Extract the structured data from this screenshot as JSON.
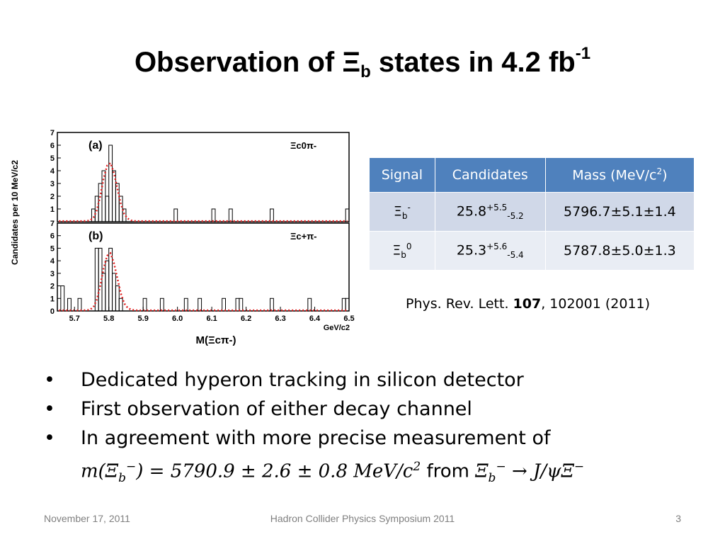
{
  "slide": {
    "title_main": "Observation of Ξ",
    "title_sub": "b",
    "title_rest": " states in 4.2 fb",
    "title_sup": "-1"
  },
  "table": {
    "headers": {
      "signal": "Signal",
      "candidates": "Candidates",
      "mass": "Mass (MeV/c",
      "mass_sup": "2",
      "mass_close": ")"
    },
    "rows": [
      {
        "signal": "Ξ",
        "signal_sub": "b",
        "signal_sup": "-",
        "cand": "25.8",
        "cand_sup": "+5.5",
        "cand_sub": "-5.2",
        "mass": "5796.7±5.1±1.4"
      },
      {
        "signal": "Ξ",
        "signal_sub": "b",
        "signal_sup": "0",
        "cand": "25.3",
        "cand_sup": "+5.6",
        "cand_sub": "-5.4",
        "mass": "5787.8±5.0±1.3"
      }
    ]
  },
  "reference": {
    "journal": "Phys. Rev. Lett. ",
    "volume": "107",
    "rest": ", 102001 (2011)"
  },
  "bullets": {
    "items": [
      "Dedicated hyperon tracking in silicon detector",
      "First observation of either decay channel",
      "In agreement with more precise measurement of"
    ],
    "marker": "•",
    "math_m": "m(Ξ",
    "math_b": "b",
    "math_minus": "−",
    "math_value": ") = 5790.9 ± 2.6 ± 0.8 MeV/c",
    "math_sq": "2",
    "math_from": " from ",
    "math_xi": "Ξ",
    "math_decay": " → J/ψΞ",
    "math_minus2": "−"
  },
  "footer": {
    "date": "November 17, 2011",
    "center": "Hadron Collider Physics Symposium  2011",
    "page": "3"
  },
  "chart_data": [
    {
      "type": "bar",
      "panel_label": "(a)",
      "channel_label": "Ξc0π-",
      "xlim": [
        5.65,
        6.5
      ],
      "ylim": [
        0,
        7
      ],
      "yticks": [
        "0",
        "1",
        "2",
        "3",
        "4",
        "5",
        "6",
        "7"
      ],
      "x": [
        5.65,
        5.66,
        5.67,
        5.68,
        5.69,
        5.7,
        5.71,
        5.72,
        5.73,
        5.74,
        5.75,
        5.76,
        5.77,
        5.78,
        5.79,
        5.8,
        5.81,
        5.82,
        5.83,
        5.84,
        5.85,
        5.86,
        5.87,
        5.88,
        5.89,
        5.9,
        5.91,
        5.92,
        5.93,
        5.94,
        5.95,
        5.96,
        5.97,
        5.98,
        5.99,
        6.0,
        6.01,
        6.02,
        6.03,
        6.04,
        6.05,
        6.06,
        6.07,
        6.08,
        6.09,
        6.1,
        6.11,
        6.12,
        6.13,
        6.14,
        6.15,
        6.16,
        6.17,
        6.18,
        6.19,
        6.2,
        6.21,
        6.22,
        6.23,
        6.24,
        6.25,
        6.26,
        6.27,
        6.28,
        6.29,
        6.3,
        6.31,
        6.32,
        6.33,
        6.34,
        6.35,
        6.36,
        6.37,
        6.38,
        6.39,
        6.4,
        6.41,
        6.42,
        6.43,
        6.44,
        6.45,
        6.46,
        6.47,
        6.48,
        6.49
      ],
      "values": [
        0,
        0,
        0,
        0,
        0,
        0,
        0,
        0,
        0,
        0,
        1,
        2,
        3,
        4,
        2,
        6,
        4,
        3,
        2,
        1,
        0,
        0,
        0,
        0,
        0,
        0,
        0,
        0,
        0,
        0,
        0,
        0,
        0,
        0,
        1,
        0,
        0,
        0,
        0,
        0,
        0,
        0,
        0,
        0,
        0,
        1,
        0,
        0,
        0,
        0,
        1,
        0,
        0,
        0,
        0,
        0,
        0,
        0,
        0,
        0,
        0,
        0,
        1,
        0,
        0,
        0,
        0,
        0,
        0,
        0,
        0,
        0,
        0,
        0,
        0,
        0,
        0,
        0,
        0,
        0,
        0,
        0,
        0,
        0,
        1
      ],
      "fit": [
        0.05,
        0.05,
        0.05,
        0.05,
        0.05,
        0.05,
        0.05,
        0.05,
        0.06,
        0.1,
        0.3,
        0.9,
        2.0,
        3.4,
        4.4,
        4.6,
        3.8,
        2.6,
        1.4,
        0.6,
        0.25,
        0.1,
        0.06,
        0.05,
        0.05,
        0.05,
        0.05,
        0.05,
        0.05,
        0.05,
        0.05,
        0.05,
        0.05,
        0.05,
        0.05,
        0.05,
        0.05,
        0.05,
        0.05,
        0.05,
        0.05,
        0.05,
        0.05,
        0.05,
        0.05,
        0.05,
        0.05,
        0.05,
        0.05,
        0.05,
        0.05,
        0.05,
        0.05,
        0.05,
        0.05,
        0.05,
        0.05,
        0.05,
        0.05,
        0.05,
        0.05,
        0.05,
        0.05,
        0.05,
        0.05,
        0.05,
        0.05,
        0.05,
        0.05,
        0.05,
        0.05,
        0.05,
        0.05,
        0.05,
        0.05,
        0.05,
        0.05,
        0.05,
        0.05,
        0.05,
        0.05,
        0.05,
        0.05,
        0.05,
        0.05
      ]
    },
    {
      "type": "bar",
      "panel_label": "(b)",
      "channel_label": "Ξc+π-",
      "xlim": [
        5.65,
        6.5
      ],
      "ylim": [
        0,
        7
      ],
      "yticks": [
        "0",
        "1",
        "2",
        "3",
        "4",
        "5",
        "6",
        "7"
      ],
      "xticks": [
        "5.7",
        "5.8",
        "5.9",
        "6.0",
        "6.1",
        "6.2",
        "6.3",
        "6.4",
        "6.5"
      ],
      "xunit": "GeV/c2",
      "xlabel": "M(Ξcπ-)",
      "ylabel": "Candidates per 10 MeV/c2",
      "x": [
        5.65,
        5.66,
        5.67,
        5.68,
        5.69,
        5.7,
        5.71,
        5.72,
        5.73,
        5.74,
        5.75,
        5.76,
        5.77,
        5.78,
        5.79,
        5.8,
        5.81,
        5.82,
        5.83,
        5.84,
        5.85,
        5.86,
        5.87,
        5.88,
        5.89,
        5.9,
        5.91,
        5.92,
        5.93,
        5.94,
        5.95,
        5.96,
        5.97,
        5.98,
        5.99,
        6.0,
        6.01,
        6.02,
        6.03,
        6.04,
        6.05,
        6.06,
        6.07,
        6.08,
        6.09,
        6.1,
        6.11,
        6.12,
        6.13,
        6.14,
        6.15,
        6.16,
        6.17,
        6.18,
        6.19,
        6.2,
        6.21,
        6.22,
        6.23,
        6.24,
        6.25,
        6.26,
        6.27,
        6.28,
        6.29,
        6.3,
        6.31,
        6.32,
        6.33,
        6.34,
        6.35,
        6.36,
        6.37,
        6.38,
        6.39,
        6.4,
        6.41,
        6.42,
        6.43,
        6.44,
        6.45,
        6.46,
        6.47,
        6.48,
        6.49
      ],
      "values": [
        0,
        2,
        0,
        1,
        0,
        0,
        1,
        0,
        0,
        0,
        0,
        5,
        5,
        3,
        4,
        5,
        3,
        2,
        1,
        0,
        0,
        0,
        0,
        0,
        0,
        1,
        0,
        0,
        0,
        0,
        1,
        0,
        0,
        0,
        0,
        0,
        0,
        1,
        0,
        0,
        0,
        1,
        0,
        0,
        0,
        0,
        0,
        0,
        1,
        0,
        0,
        0,
        1,
        1,
        0,
        0,
        0,
        0,
        0,
        0,
        0,
        0,
        1,
        0,
        0,
        0,
        0,
        0,
        0,
        0,
        0,
        0,
        0,
        1,
        0,
        0,
        0,
        0,
        0,
        0,
        0,
        0,
        0,
        1,
        1
      ],
      "fit": [
        0.05,
        0.05,
        0.05,
        0.05,
        0.05,
        0.05,
        0.05,
        0.05,
        0.06,
        0.1,
        0.3,
        0.9,
        2.0,
        3.4,
        4.4,
        4.6,
        3.8,
        2.6,
        1.4,
        0.6,
        0.25,
        0.1,
        0.06,
        0.05,
        0.05,
        0.05,
        0.05,
        0.05,
        0.05,
        0.05,
        0.05,
        0.05,
        0.05,
        0.05,
        0.05,
        0.05,
        0.05,
        0.05,
        0.05,
        0.05,
        0.05,
        0.05,
        0.05,
        0.05,
        0.05,
        0.05,
        0.05,
        0.05,
        0.05,
        0.05,
        0.05,
        0.05,
        0.05,
        0.05,
        0.05,
        0.05,
        0.05,
        0.05,
        0.05,
        0.05,
        0.05,
        0.05,
        0.05,
        0.05,
        0.05,
        0.05,
        0.05,
        0.05,
        0.05,
        0.05,
        0.05,
        0.05,
        0.05,
        0.05,
        0.05,
        0.05,
        0.05,
        0.05,
        0.05,
        0.05,
        0.05,
        0.05,
        0.05,
        0.05,
        0.05
      ]
    }
  ],
  "colors": {
    "header_bg": "#4f81bd",
    "row1_bg": "#d0d8e8",
    "row2_bg": "#e9edf4",
    "fit_line": "#e02020",
    "footer_text": "#7f7f7f"
  }
}
